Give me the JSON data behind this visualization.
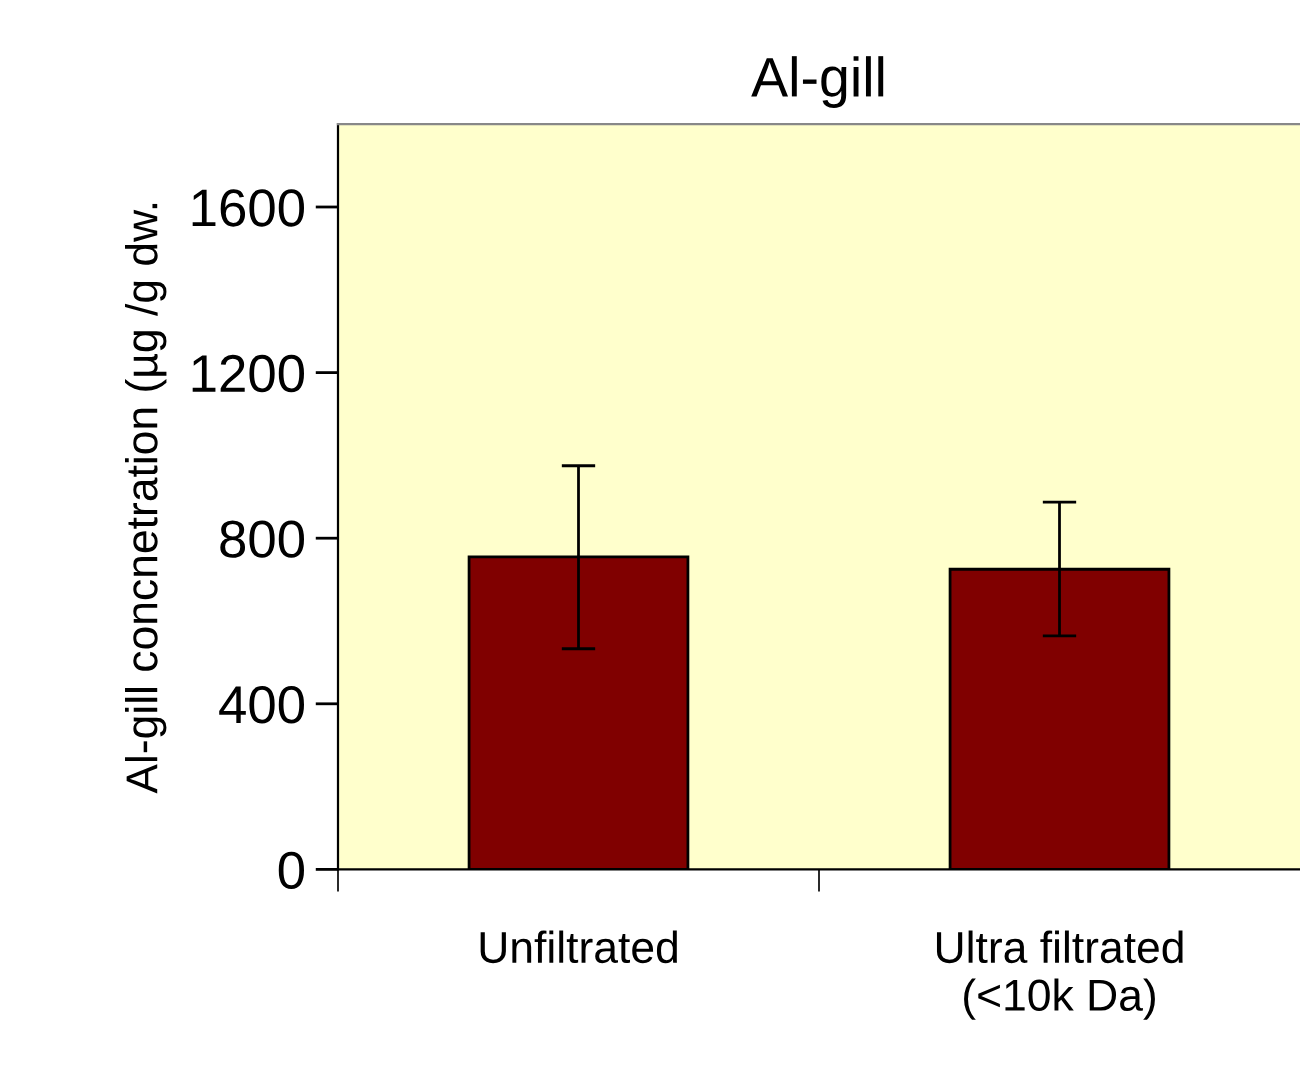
{
  "chart_data": {
    "type": "bar",
    "title": "Al-gill",
    "ylabel": "Al-gill concnetration (µg /g dw.",
    "categories": [
      "Unfiltrated",
      "Ultra filtrated\n(<10k Da)"
    ],
    "values": [
      755,
      725
    ],
    "errors": [
      [
        533,
        975
      ],
      [
        564,
        887
      ]
    ],
    "color": "#800000",
    "ylim": [
      0,
      1800
    ],
    "yticks": [
      0,
      400,
      800,
      1200,
      1600
    ],
    "grid": false
  }
}
